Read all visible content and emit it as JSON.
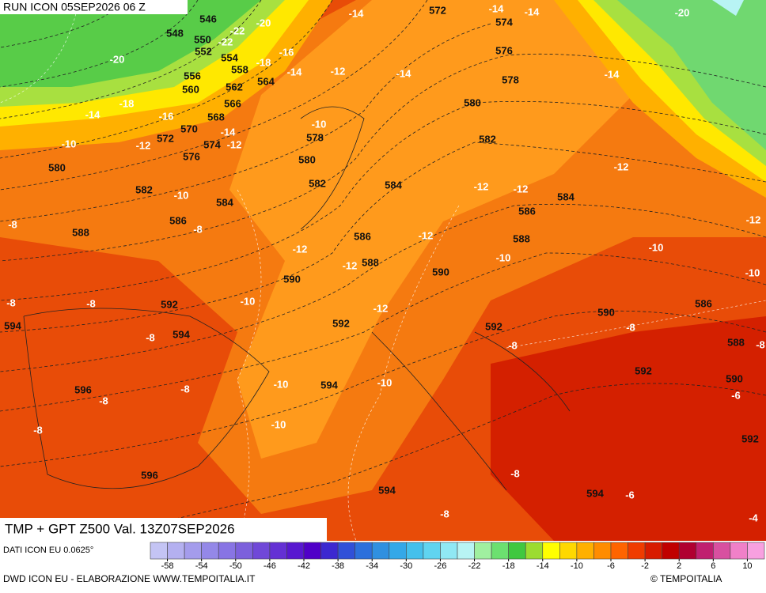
{
  "header": {
    "run": "RUN ICON 05SEP2026 06 Z",
    "title": "TMP + GPT Z500 Val. 13Z07SEP2026",
    "source": "DATI ICON EU 0.0625°",
    "credit": "DWD ICON EU - ELABORAZIONE WWW.TEMPOITALIA.IT",
    "copyright": "© TEMPOITALIA"
  },
  "map": {
    "temperature_labels": [
      -14,
      -14,
      -14,
      -20,
      -22,
      -20,
      -22,
      -16,
      -18,
      -14,
      -12,
      -20,
      -14,
      -14,
      -18,
      -16,
      -14,
      -14,
      -12,
      -10,
      -10,
      -12,
      -12,
      -10,
      -12,
      -12,
      -8,
      -8,
      -12,
      -12,
      -12,
      -10,
      -12,
      -10,
      -10,
      -10,
      -8,
      -8,
      -12,
      -8,
      -8,
      -8,
      -8,
      -10,
      -10,
      -8,
      -8,
      -6,
      -10,
      -8,
      -8,
      -6,
      -8,
      -4
    ],
    "height_labels": [
      546,
      572,
      574,
      548,
      550,
      552,
      554,
      576,
      558,
      556,
      564,
      578,
      560,
      562,
      566,
      580,
      568,
      570,
      578,
      572,
      582,
      574,
      576,
      580,
      580,
      582,
      584,
      582,
      584,
      586,
      586,
      584,
      588,
      586,
      588,
      588,
      590,
      590,
      592,
      586,
      590,
      594,
      592,
      592,
      594,
      588,
      592,
      590,
      594,
      596,
      592,
      596,
      594,
      594
    ]
  },
  "colorbar": {
    "xlim": [
      -60,
      12
    ],
    "ticks": [
      -58,
      -54,
      -50,
      -46,
      -42,
      -38,
      -34,
      -30,
      -26,
      -22,
      -18,
      -14,
      -10,
      -6,
      -2,
      2,
      6,
      10
    ],
    "colors": [
      "#c4c4f4",
      "#b4b0f0",
      "#a49cec",
      "#9488e8",
      "#8874e4",
      "#7c60dc",
      "#7048d8",
      "#6430d4",
      "#5818d0",
      "#5000c8",
      "#3c28d0",
      "#3050d8",
      "#2c70dc",
      "#3090e0",
      "#34a8e8",
      "#44c0ec",
      "#60d4f0",
      "#90e8f4",
      "#b8f4f4",
      "#a0f0a0",
      "#6ce070",
      "#40c840",
      "#9cdc30",
      "#ffff00",
      "#ffd800",
      "#ffb000",
      "#ff8c00",
      "#ff6400",
      "#f03c00",
      "#d81c00",
      "#c00000",
      "#b00030",
      "#c02070",
      "#d850a0",
      "#f080c8",
      "#f8a0e0"
    ]
  }
}
